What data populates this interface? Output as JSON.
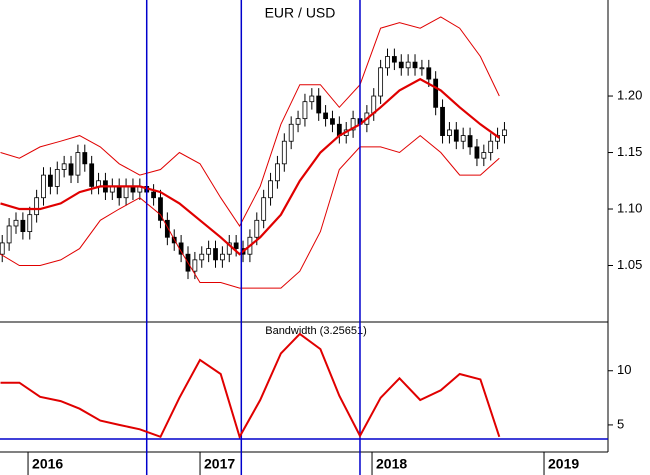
{
  "chart_data": [
    {
      "type": "candlestick",
      "title": "EUR / USD",
      "x": [
        2015.85,
        2015.89,
        2015.93,
        2015.97,
        2016.01,
        2016.05,
        2016.09,
        2016.13,
        2016.17,
        2016.21,
        2016.25,
        2016.29,
        2016.33,
        2016.37,
        2016.41,
        2016.45,
        2016.49,
        2016.53,
        2016.57,
        2016.61,
        2016.65,
        2016.69,
        2016.73,
        2016.77,
        2016.81,
        2016.85,
        2016.89,
        2016.93,
        2016.97,
        2017.01,
        2017.05,
        2017.09,
        2017.13,
        2017.17,
        2017.21,
        2017.25,
        2017.29,
        2017.33,
        2017.37,
        2017.41,
        2017.45,
        2017.49,
        2017.53,
        2017.57,
        2017.61,
        2017.65,
        2017.69,
        2017.73,
        2017.77,
        2017.81,
        2017.85,
        2017.89,
        2017.93,
        2017.97,
        2018.01,
        2018.05,
        2018.09,
        2018.13,
        2018.17,
        2018.21,
        2018.25,
        2018.29,
        2018.33,
        2018.37,
        2018.41,
        2018.45,
        2018.49,
        2018.53,
        2018.57,
        2018.61,
        2018.65,
        2018.69,
        2018.73,
        2018.77
      ],
      "open": [
        1.06,
        1.07,
        1.085,
        1.09,
        1.08,
        1.095,
        1.11,
        1.13,
        1.12,
        1.135,
        1.14,
        1.13,
        1.15,
        1.14,
        1.12,
        1.125,
        1.115,
        1.12,
        1.11,
        1.12,
        1.115,
        1.12,
        1.115,
        1.11,
        1.09,
        1.075,
        1.07,
        1.06,
        1.045,
        1.055,
        1.06,
        1.065,
        1.055,
        1.06,
        1.07,
        1.065,
        1.06,
        1.075,
        1.09,
        1.11,
        1.125,
        1.14,
        1.16,
        1.175,
        1.18,
        1.195,
        1.2,
        1.185,
        1.18,
        1.175,
        1.165,
        1.17,
        1.18,
        1.175,
        1.185,
        1.2,
        1.225,
        1.235,
        1.23,
        1.225,
        1.23,
        1.225,
        1.225,
        1.215,
        1.19,
        1.165,
        1.17,
        1.16,
        1.165,
        1.155,
        1.145,
        1.15,
        1.16,
        1.165
      ],
      "high": [
        1.077,
        1.092,
        1.097,
        1.097,
        1.102,
        1.117,
        1.137,
        1.137,
        1.142,
        1.147,
        1.147,
        1.157,
        1.157,
        1.147,
        1.132,
        1.132,
        1.127,
        1.127,
        1.127,
        1.127,
        1.127,
        1.127,
        1.122,
        1.117,
        1.097,
        1.082,
        1.077,
        1.067,
        1.062,
        1.067,
        1.072,
        1.072,
        1.067,
        1.077,
        1.077,
        1.072,
        1.082,
        1.097,
        1.117,
        1.132,
        1.147,
        1.167,
        1.182,
        1.187,
        1.202,
        1.207,
        1.207,
        1.192,
        1.187,
        1.182,
        1.177,
        1.187,
        1.187,
        1.192,
        1.207,
        1.232,
        1.242,
        1.242,
        1.237,
        1.237,
        1.237,
        1.232,
        1.232,
        1.222,
        1.197,
        1.177,
        1.177,
        1.172,
        1.172,
        1.162,
        1.157,
        1.167,
        1.172,
        1.177
      ],
      "low": [
        1.053,
        1.063,
        1.078,
        1.073,
        1.073,
        1.088,
        1.103,
        1.113,
        1.113,
        1.128,
        1.123,
        1.123,
        1.133,
        1.113,
        1.113,
        1.108,
        1.108,
        1.103,
        1.103,
        1.108,
        1.108,
        1.108,
        1.103,
        1.083,
        1.068,
        1.063,
        1.053,
        1.038,
        1.038,
        1.048,
        1.053,
        1.048,
        1.048,
        1.053,
        1.058,
        1.053,
        1.053,
        1.068,
        1.083,
        1.103,
        1.118,
        1.133,
        1.153,
        1.168,
        1.173,
        1.188,
        1.178,
        1.173,
        1.168,
        1.158,
        1.158,
        1.163,
        1.168,
        1.168,
        1.178,
        1.193,
        1.218,
        1.223,
        1.218,
        1.218,
        1.218,
        1.218,
        1.208,
        1.183,
        1.158,
        1.158,
        1.153,
        1.153,
        1.148,
        1.138,
        1.138,
        1.143,
        1.153,
        1.158
      ],
      "close": [
        1.07,
        1.085,
        1.09,
        1.08,
        1.095,
        1.11,
        1.13,
        1.12,
        1.135,
        1.14,
        1.13,
        1.15,
        1.14,
        1.12,
        1.125,
        1.115,
        1.12,
        1.11,
        1.12,
        1.115,
        1.12,
        1.115,
        1.11,
        1.09,
        1.075,
        1.07,
        1.06,
        1.045,
        1.055,
        1.06,
        1.065,
        1.055,
        1.06,
        1.07,
        1.065,
        1.06,
        1.075,
        1.09,
        1.11,
        1.125,
        1.14,
        1.16,
        1.175,
        1.18,
        1.195,
        1.2,
        1.185,
        1.18,
        1.175,
        1.165,
        1.17,
        1.18,
        1.175,
        1.185,
        1.2,
        1.225,
        1.235,
        1.23,
        1.225,
        1.23,
        1.225,
        1.225,
        1.215,
        1.19,
        1.165,
        1.17,
        1.16,
        1.165,
        1.155,
        1.145,
        1.15,
        1.16,
        1.165,
        1.17
      ],
      "series": [
        {
          "color": "#e00000",
          "x": [
            2015.84,
            2015.95,
            2016.07,
            2016.19,
            2016.3,
            2016.42,
            2016.53,
            2016.65,
            2016.77,
            2016.88,
            2017.0,
            2017.12,
            2017.23,
            2017.35,
            2017.47,
            2017.58,
            2017.7,
            2017.81,
            2017.93,
            2018.05,
            2018.16,
            2018.28,
            2018.4,
            2018.51,
            2018.63,
            2018.74
          ],
          "values": [
            1.105,
            1.1,
            1.1,
            1.105,
            1.115,
            1.12,
            1.12,
            1.12,
            1.115,
            1.105,
            1.09,
            1.075,
            1.06,
            1.075,
            1.095,
            1.125,
            1.15,
            1.165,
            1.175,
            1.19,
            1.205,
            1.215,
            1.205,
            1.19,
            1.175,
            1.163
          ]
        },
        {
          "color": "#e00000",
          "x": [
            2015.84,
            2015.95,
            2016.07,
            2016.19,
            2016.3,
            2016.42,
            2016.53,
            2016.65,
            2016.77,
            2016.88,
            2017.0,
            2017.12,
            2017.23,
            2017.35,
            2017.47,
            2017.58,
            2017.7,
            2017.81,
            2017.93,
            2018.05,
            2018.16,
            2018.28,
            2018.4,
            2018.51,
            2018.63,
            2018.74
          ],
          "values": [
            1.15,
            1.145,
            1.155,
            1.16,
            1.165,
            1.155,
            1.14,
            1.13,
            1.135,
            1.15,
            1.14,
            1.11,
            1.085,
            1.12,
            1.175,
            1.21,
            1.21,
            1.19,
            1.21,
            1.26,
            1.265,
            1.26,
            1.27,
            1.26,
            1.235,
            1.2
          ]
        },
        {
          "color": "#e00000",
          "x": [
            2015.84,
            2015.95,
            2016.07,
            2016.19,
            2016.3,
            2016.42,
            2016.53,
            2016.65,
            2016.77,
            2016.88,
            2017.0,
            2017.12,
            2017.23,
            2017.35,
            2017.47,
            2017.58,
            2017.7,
            2017.81,
            2017.93,
            2018.05,
            2018.16,
            2018.28,
            2018.4,
            2018.51,
            2018.63,
            2018.74
          ],
          "values": [
            1.06,
            1.05,
            1.05,
            1.055,
            1.065,
            1.09,
            1.1,
            1.11,
            1.095,
            1.065,
            1.035,
            1.035,
            1.03,
            1.03,
            1.03,
            1.045,
            1.08,
            1.135,
            1.155,
            1.155,
            1.15,
            1.165,
            1.15,
            1.13,
            1.13,
            1.145
          ]
        }
      ],
      "vlines": [
        2016.69,
        2017.24,
        2017.93
      ],
      "vline_color": "#0000cc",
      "xlim": [
        2015.837,
        2019.372
      ],
      "ylim": [
        1.0,
        1.285
      ],
      "yticks": [
        1.05,
        {
          "value": 1.1,
          "label": "1.10"
        },
        1.15,
        {
          "value": 1.2,
          "label": "1.20"
        }
      ]
    },
    {
      "type": "line",
      "title": "Bandwidth (3.25651)",
      "color": "#e00000",
      "x": [
        2015.84,
        2015.95,
        2016.07,
        2016.19,
        2016.3,
        2016.42,
        2016.53,
        2016.65,
        2016.77,
        2016.88,
        2017.0,
        2017.12,
        2017.23,
        2017.35,
        2017.47,
        2017.58,
        2017.7,
        2017.81,
        2017.93,
        2018.05,
        2018.16,
        2018.28,
        2018.4,
        2018.51,
        2018.63,
        2018.74
      ],
      "values": [
        8.9,
        8.9,
        7.6,
        7.2,
        6.5,
        5.4,
        5.0,
        4.6,
        3.9,
        7.5,
        11.0,
        9.7,
        3.9,
        7.3,
        11.6,
        13.4,
        12.0,
        7.7,
        4.0,
        7.5,
        9.3,
        7.3,
        8.2,
        9.7,
        9.2,
        3.9
      ],
      "hline": 3.7,
      "hline_color": "#0000cc",
      "xlim": [
        2015.837,
        2019.372
      ],
      "ylim": [
        2.5,
        14.5
      ],
      "yticks": [
        5,
        10
      ],
      "xticks": [
        2016,
        2017,
        2018,
        2019
      ]
    }
  ]
}
